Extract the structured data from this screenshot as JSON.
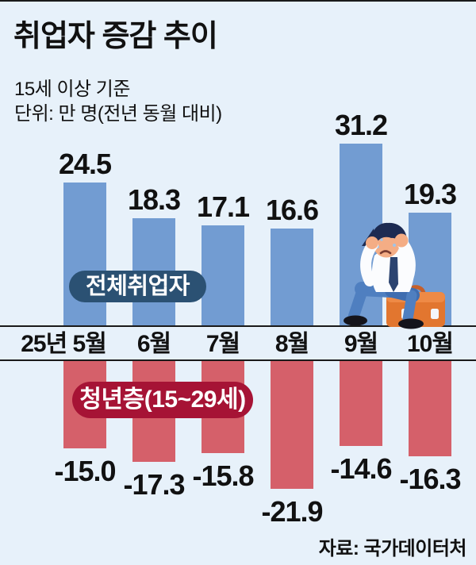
{
  "page": {
    "title": "취업자 증감 추이",
    "subtitle_line1": "15세 이상 기준",
    "subtitle_line2": "단위: 만 명(전년 동월 대비)",
    "source": "자료: 국가데이터처"
  },
  "badges": {
    "total_label": "전체취업자",
    "youth_label_bold": "청년층",
    "youth_label_normal": "(15~29세)"
  },
  "colors": {
    "background": "#e7f1fa",
    "bar_positive": "#729cd2",
    "bar_negative": "#d5606a",
    "badge_total": "#2b5173",
    "badge_youth": "#a61335",
    "axis_line": "#1a1a1a",
    "top_border": "#1a1a1a",
    "text": "#111111"
  },
  "chart_data": {
    "type": "bar",
    "title": "취업자 증감 추이",
    "basis": "15세 이상 기준",
    "unit": "만 명(전년 동월 대비)",
    "categories": [
      "25년 5월",
      "6월",
      "7월",
      "8월",
      "9월",
      "10월"
    ],
    "series": [
      {
        "name": "전체취업자",
        "values": [
          24.5,
          18.3,
          17.1,
          16.6,
          31.2,
          19.3
        ],
        "labels": [
          "24.5",
          "18.3",
          "17.1",
          "16.6",
          "31.2",
          "19.3"
        ]
      },
      {
        "name": "청년층(15~29세)",
        "values": [
          -15.0,
          -17.3,
          -15.8,
          -21.9,
          -14.6,
          -16.3
        ],
        "labels": [
          "-15.0",
          "-17.3",
          "-15.8",
          "-21.9",
          "-14.6",
          "-16.3"
        ]
      }
    ],
    "ylim": [
      -25,
      35
    ],
    "grid": false,
    "legend_position": "inline-badges",
    "source": "자료: 국가데이터처"
  },
  "illustration": "sad-businessman-sitting-on-briefcase-icon"
}
